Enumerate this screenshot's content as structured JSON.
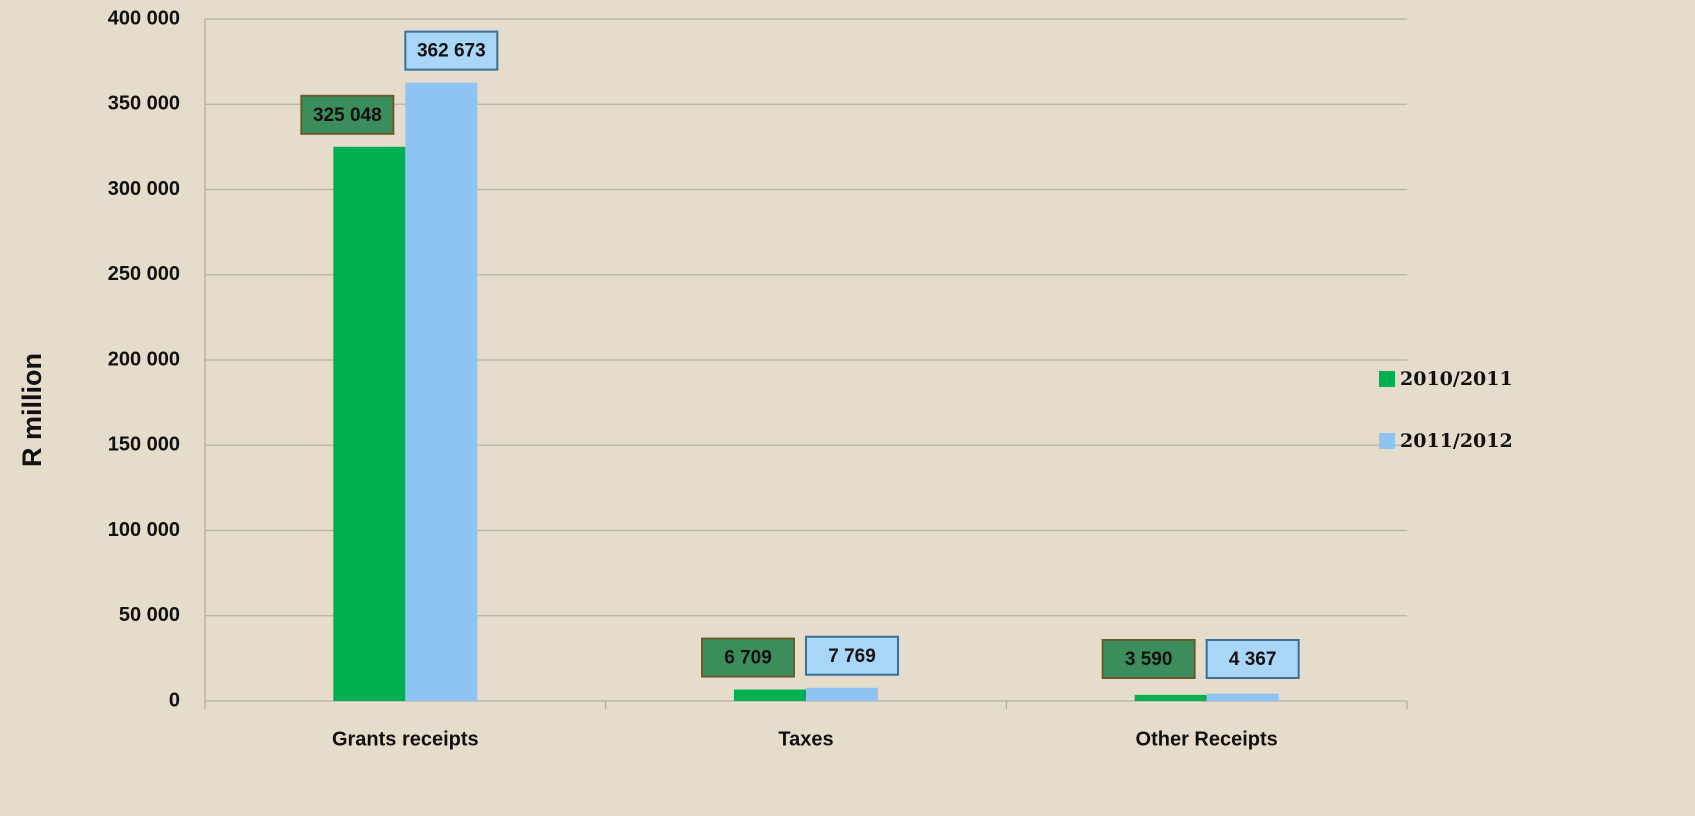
{
  "chart_data": {
    "type": "bar",
    "categories": [
      "Grants receipts",
      "Taxes",
      "Other Receipts"
    ],
    "series": [
      {
        "name": "2010/2011",
        "color": "#00b050",
        "values": [
          325048,
          6709,
          3590
        ],
        "value_labels": [
          "325 048",
          "6 709",
          "3 590"
        ]
      },
      {
        "name": "2011/2012",
        "color": "#8fc4f2",
        "values": [
          362673,
          7769,
          4367
        ],
        "value_labels": [
          "362 673",
          "7 769",
          "4 367"
        ]
      }
    ],
    "ylabel": "R million",
    "ylim": [
      0,
      400000
    ],
    "yticks": [
      0,
      {
        "value": 50000,
        "label": "50 000"
      },
      {
        "value": 100000,
        "label": "100 000"
      },
      {
        "value": 150000,
        "label": "150 000"
      },
      {
        "value": 200000,
        "label": "200 000"
      },
      {
        "value": 250000,
        "label": "250 000"
      },
      {
        "value": 300000,
        "label": "300 000"
      },
      {
        "value": 350000,
        "label": "350 000"
      },
      {
        "value": 400000,
        "label": "400 000"
      }
    ],
    "grid": true,
    "legend": "right"
  }
}
